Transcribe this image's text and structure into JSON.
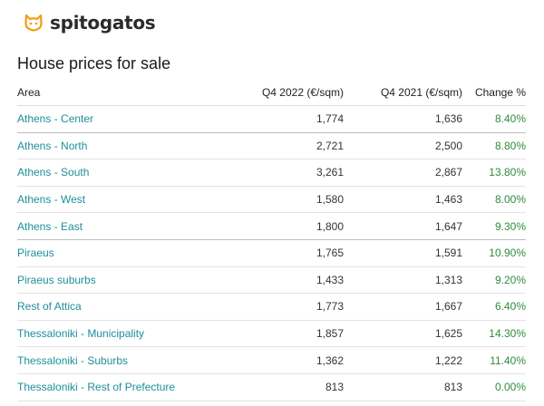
{
  "brand": {
    "name": "spitogatos",
    "logo_icon": "cat-icon",
    "logo_color": "#f39c12"
  },
  "title": "House prices for sale",
  "table": {
    "headers": [
      "Area",
      "Q4 2022 (€/sqm)",
      "Q4 2021 (€/sqm)",
      "Change %"
    ],
    "rows": [
      {
        "area": "Athens - Center",
        "q4_2022": "1,774",
        "q4_2021": "1,636",
        "change": "8.40%"
      },
      {
        "area": "Athens - North",
        "q4_2022": "2,721",
        "q4_2021": "2,500",
        "change": "8.80%"
      },
      {
        "area": "Athens - South",
        "q4_2022": "3,261",
        "q4_2021": "2,867",
        "change": "13.80%"
      },
      {
        "area": "Athens - West",
        "q4_2022": "1,580",
        "q4_2021": "1,463",
        "change": "8.00%"
      },
      {
        "area": "Athens - East",
        "q4_2022": "1,800",
        "q4_2021": "1,647",
        "change": "9.30%"
      },
      {
        "area": "Piraeus",
        "q4_2022": "1,765",
        "q4_2021": "1,591",
        "change": "10.90%"
      },
      {
        "area": "Piraeus suburbs",
        "q4_2022": "1,433",
        "q4_2021": "1,313",
        "change": "9.20%"
      },
      {
        "area": "Rest of Attica",
        "q4_2022": "1,773",
        "q4_2021": "1,667",
        "change": "6.40%"
      },
      {
        "area": "Thessaloniki - Municipality",
        "q4_2022": "1,857",
        "q4_2021": "1,625",
        "change": "14.30%"
      },
      {
        "area": "Thessaloniki - Suburbs",
        "q4_2022": "1,362",
        "q4_2021": "1,222",
        "change": "11.40%"
      },
      {
        "area": "Thessaloniki - Rest of Prefecture",
        "q4_2022": "813",
        "q4_2021": "813",
        "change": "0.00%"
      }
    ]
  },
  "colors": {
    "link": "#1e8f9a",
    "change": "#2e8b3a"
  }
}
